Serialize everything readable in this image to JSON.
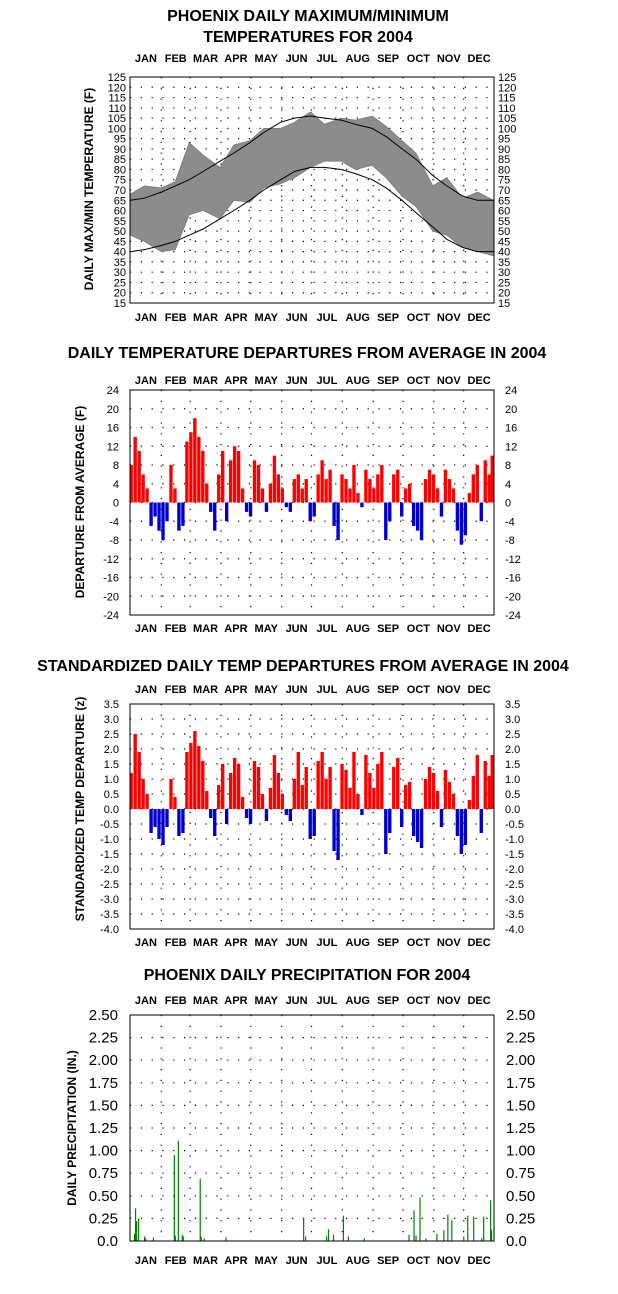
{
  "months": [
    "JAN",
    "FEB",
    "MAR",
    "APR",
    "MAY",
    "JUN",
    "JUL",
    "AUG",
    "SEP",
    "OCT",
    "NOV",
    "DEC"
  ],
  "chart_data": [
    {
      "type": "area",
      "title_lines": [
        "PHOENIX DAILY MAXIMUM/MINIMUM",
        "TEMPERATURES FOR 2004"
      ],
      "ylabel": "DAILY MAX/MIN TEMPERATURE (F)",
      "ylim": [
        15,
        125
      ],
      "yticks": [
        "15",
        "20",
        "25",
        "30",
        "35",
        "40",
        "45",
        "50",
        "55",
        "60",
        "65",
        "70",
        "75",
        "80",
        "85",
        "90",
        "95",
        "100",
        "105",
        "110",
        "115",
        "120",
        "125"
      ],
      "grid": "dotted",
      "series": [
        {
          "name": "",
          "style": "gray band (observed daily max/min range)",
          "x": [
            1,
            15,
            32,
            46,
            60,
            74,
            91,
            105,
            121,
            135,
            152,
            166,
            182,
            196,
            213,
            227,
            244,
            258,
            274,
            288,
            305,
            319,
            335,
            350,
            366
          ],
          "max": [
            68,
            72,
            71,
            74,
            93,
            87,
            81,
            92,
            94,
            100,
            100,
            103,
            108,
            102,
            105,
            104,
            106,
            101,
            94,
            88,
            72,
            76,
            66,
            69,
            65
          ],
          "min": [
            48,
            45,
            40,
            41,
            58,
            60,
            56,
            65,
            64,
            71,
            73,
            76,
            81,
            84,
            84,
            80,
            82,
            76,
            67,
            62,
            50,
            48,
            42,
            40,
            38
          ]
        },
        {
          "name": "",
          "style": "black line (normal max)",
          "x": [
            1,
            15,
            32,
            46,
            60,
            74,
            91,
            105,
            121,
            135,
            152,
            166,
            182,
            196,
            213,
            227,
            244,
            258,
            274,
            288,
            305,
            319,
            335,
            350,
            366
          ],
          "values": [
            65,
            66,
            69,
            72,
            75,
            79,
            84,
            88,
            93,
            98,
            103,
            105,
            106,
            105,
            104,
            102,
            100,
            96,
            90,
            85,
            77,
            72,
            67,
            65,
            65
          ]
        },
        {
          "name": "",
          "style": "black line (normal min)",
          "x": [
            1,
            15,
            32,
            46,
            60,
            74,
            91,
            105,
            121,
            135,
            152,
            166,
            182,
            196,
            213,
            227,
            244,
            258,
            274,
            288,
            305,
            319,
            335,
            350,
            366
          ],
          "values": [
            40,
            41,
            43,
            45,
            48,
            51,
            56,
            60,
            65,
            70,
            75,
            79,
            81,
            81,
            80,
            78,
            75,
            71,
            65,
            59,
            52,
            46,
            42,
            40,
            40
          ]
        }
      ]
    },
    {
      "type": "bar",
      "title": "DAILY TEMPERATURE DEPARTURES FROM AVERAGE IN 2004",
      "ylabel": "DEPARTURE FROM AVERAGE (F)",
      "ylim": [
        -24,
        24
      ],
      "yticks": [
        "-24",
        "-20",
        "-16",
        "-12",
        "-8",
        "-4",
        "0",
        "4",
        "8",
        "12",
        "16",
        "20",
        "24"
      ],
      "grid": "dotted",
      "positive_color": "#ff0000",
      "negative_color": "#0000cc",
      "x": [
        2,
        6,
        10,
        14,
        18,
        22,
        26,
        30,
        34,
        38,
        42,
        46,
        50,
        54,
        58,
        62,
        66,
        70,
        74,
        78,
        82,
        86,
        90,
        94,
        98,
        102,
        106,
        110,
        114,
        118,
        122,
        126,
        130,
        134,
        138,
        142,
        146,
        150,
        154,
        158,
        162,
        166,
        170,
        174,
        178,
        182,
        186,
        190,
        194,
        198,
        202,
        206,
        210,
        214,
        218,
        222,
        226,
        230,
        234,
        238,
        242,
        246,
        250,
        254,
        258,
        262,
        266,
        270,
        274,
        278,
        282,
        286,
        290,
        294,
        298,
        302,
        306,
        310,
        314,
        318,
        322,
        326,
        330,
        334,
        338,
        342,
        346,
        350,
        354,
        358,
        362,
        365
      ],
      "values": [
        8,
        14,
        11,
        6,
        3,
        -5,
        -3,
        -6,
        -8,
        -4,
        8,
        3,
        -6,
        -5,
        13,
        15,
        18,
        14,
        11,
        4,
        -2,
        -6,
        6,
        11,
        -4,
        9,
        12,
        11,
        3,
        -2,
        -3,
        9,
        8,
        3,
        -2,
        4,
        10,
        6,
        3,
        -1,
        -2,
        5,
        6,
        3,
        5,
        -4,
        -3,
        6,
        9,
        5,
        7,
        -5,
        -8,
        6,
        5,
        3,
        8,
        2,
        -1,
        7,
        5,
        3,
        6,
        8,
        -8,
        -4,
        6,
        7,
        -3,
        3,
        4,
        -5,
        -6,
        -8,
        5,
        7,
        6,
        3,
        -3,
        7,
        5,
        3,
        -6,
        -9,
        -7,
        2,
        6,
        8,
        -4,
        9,
        6,
        10
      ]
    },
    {
      "type": "bar",
      "title": "STANDARDIZED DAILY TEMP DEPARTURES FROM AVERAGE IN 2004",
      "ylabel": "STANDARDIZED TEMP DEPARTURE (z)",
      "ylim": [
        -4.0,
        3.5
      ],
      "yticks": [
        "-4.0",
        "-3.5",
        "-3.0",
        "-2.5",
        "-2.0",
        "-1.5",
        "-1.0",
        "-0.5",
        "0.0",
        "0.5",
        "1.0",
        "1.5",
        "2.0",
        "2.5",
        "3.0",
        "3.5"
      ],
      "grid": "dotted",
      "positive_color": "#ff0000",
      "negative_color": "#0000cc",
      "x": [
        2,
        6,
        10,
        14,
        18,
        22,
        26,
        30,
        34,
        38,
        42,
        46,
        50,
        54,
        58,
        62,
        66,
        70,
        74,
        78,
        82,
        86,
        90,
        94,
        98,
        102,
        106,
        110,
        114,
        118,
        122,
        126,
        130,
        134,
        138,
        142,
        146,
        150,
        154,
        158,
        162,
        166,
        170,
        174,
        178,
        182,
        186,
        190,
        194,
        198,
        202,
        206,
        210,
        214,
        218,
        222,
        226,
        230,
        234,
        238,
        242,
        246,
        250,
        254,
        258,
        262,
        266,
        270,
        274,
        278,
        282,
        286,
        290,
        294,
        298,
        302,
        306,
        310,
        314,
        318,
        322,
        326,
        330,
        334,
        338,
        342,
        346,
        350,
        354,
        358,
        362,
        365
      ],
      "values": [
        1.2,
        2.5,
        1.9,
        1.0,
        0.5,
        -0.8,
        -0.6,
        -1.0,
        -1.2,
        -0.6,
        1.0,
        0.4,
        -0.9,
        -0.8,
        1.9,
        2.2,
        2.6,
        2.1,
        1.6,
        0.6,
        -0.3,
        -0.9,
        0.8,
        1.5,
        -0.5,
        1.2,
        1.7,
        1.5,
        0.4,
        -0.3,
        -0.5,
        1.6,
        1.4,
        0.5,
        -0.4,
        0.7,
        1.8,
        1.2,
        0.5,
        -0.2,
        -0.4,
        1.0,
        1.9,
        0.8,
        1.4,
        -1.0,
        -0.9,
        1.6,
        1.9,
        1.0,
        1.4,
        -1.4,
        -1.7,
        1.5,
        1.3,
        0.7,
        1.9,
        0.5,
        -0.2,
        1.8,
        1.2,
        0.7,
        1.5,
        1.9,
        -1.5,
        -0.8,
        1.4,
        1.7,
        -0.6,
        0.8,
        0.9,
        -0.9,
        -1.1,
        -1.3,
        1.0,
        1.4,
        1.2,
        0.6,
        -0.6,
        1.3,
        0.9,
        0.5,
        -0.9,
        -1.5,
        -1.2,
        0.3,
        1.1,
        1.8,
        -0.8,
        1.6,
        1.1,
        1.8
      ]
    },
    {
      "type": "bar",
      "title": "PHOENIX DAILY PRECIPITATION FOR 2004",
      "ylabel": "DAILY PRECIPITATION (IN.)",
      "ylim": [
        0,
        2.5
      ],
      "yticks": [
        "0.0",
        "0.25",
        "0.50",
        "0.75",
        "1.00",
        "1.25",
        "1.50",
        "1.75",
        "2.00",
        "2.25",
        "2.50"
      ],
      "grid": "dotted",
      "bar_color": "#008000",
      "x": [
        5,
        6,
        7,
        9,
        15,
        16,
        24,
        45,
        46,
        49,
        53,
        54,
        71,
        72,
        75,
        97,
        175,
        177,
        198,
        200,
        205,
        215,
        220,
        236,
        281,
        286,
        288,
        292,
        298,
        309,
        316,
        320,
        324,
        336,
        340,
        346,
        354,
        356,
        363,
        364
      ],
      "values": [
        0.08,
        0.36,
        0.22,
        0.25,
        0.05,
        0.03,
        0.04,
        0.95,
        0.06,
        1.11,
        0.07,
        0.05,
        0.69,
        0.05,
        0.03,
        0.04,
        0.26,
        0.05,
        0.05,
        0.13,
        0.07,
        0.28,
        0.05,
        0.03,
        0.07,
        0.34,
        0.06,
        0.48,
        0.03,
        0.08,
        0.12,
        0.29,
        0.23,
        0.05,
        0.28,
        0.27,
        0.03,
        0.27,
        0.45,
        0.12
      ]
    }
  ]
}
